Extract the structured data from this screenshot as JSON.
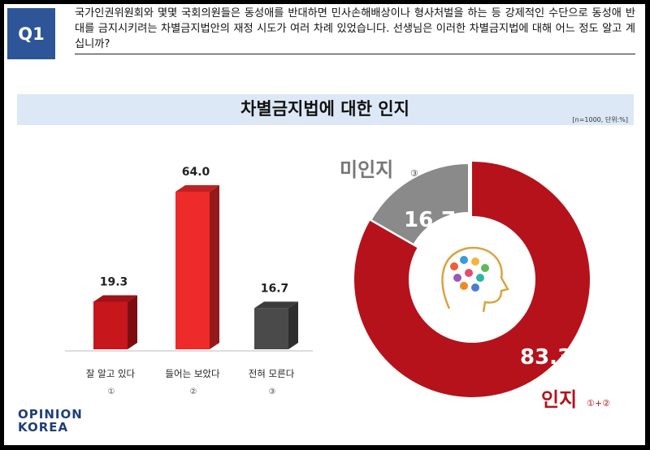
{
  "question": {
    "number": "Q1",
    "text": "국가인권위원회와 몇몇 국회의원들은 동성애를 반대하면 민사손해배상이나 형사처벌을 하는 등 강제적인 수단으로 동성애 반대를 금지시키려는 차별금지법안의 재정 시도가 여러 차례 있었습니다. 선생님은 이러한 차별금지법에 대해 어느 정도 알고 계십니까?"
  },
  "chart_title": "차별금지법에 대한 인지",
  "sample_note": "[n=1000, 단위:%]",
  "logo": {
    "line1": "OPINION",
    "line2": "KOREA"
  },
  "chart_data": [
    {
      "type": "bar",
      "categories": [
        "잘 알고 있다",
        "들어는 보았다",
        "전혀 모른다"
      ],
      "category_marks": [
        "①",
        "②",
        "③"
      ],
      "values": [
        19.3,
        64.0,
        16.7
      ],
      "value_labels": [
        "19.3",
        "64.0",
        "16.7"
      ],
      "colors": [
        "#c8161d",
        "#ee2a2a",
        "#4a4a4a"
      ],
      "ylim": [
        0,
        70
      ],
      "grid": false
    },
    {
      "type": "pie",
      "style": "donut",
      "labels": [
        "인지",
        "미인지"
      ],
      "label_marks": [
        "①+②",
        "③"
      ],
      "values": [
        83.3,
        16.7
      ],
      "value_labels": [
        "83.3",
        "16.7"
      ],
      "colors": [
        "#b5121b",
        "#8a8a8a"
      ]
    }
  ]
}
